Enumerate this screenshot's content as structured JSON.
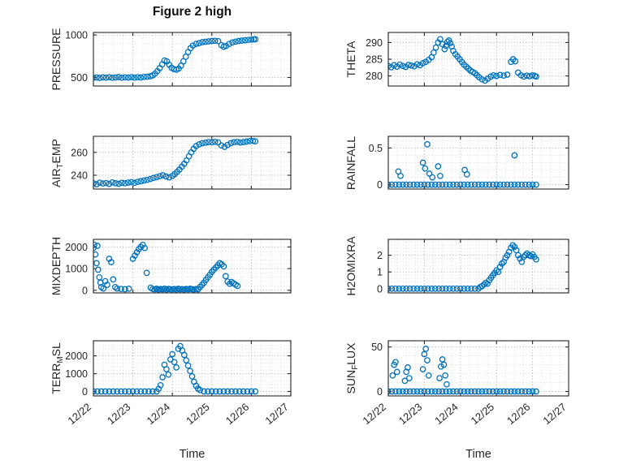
{
  "figure": {
    "title": "Figure 2 high",
    "xlabel": "Time",
    "marker": {
      "color": "#0072BD",
      "size": 3.2
    },
    "axis_color": "#262626",
    "grid_major_color": "#a9a9a9",
    "grid_minor_color": "#dcdcdc",
    "x_axis": {
      "lim": [
        22,
        27
      ],
      "ticks": [
        22,
        23,
        24,
        25,
        26,
        27
      ],
      "tick_labels": [
        "12/22",
        "12/23",
        "12/24",
        "12/25",
        "12/26",
        "12/27"
      ]
    }
  },
  "chart_data": [
    {
      "name": "PRESSURE",
      "type": "scatter",
      "ylabel_parts": [
        {
          "t": "PRESSURE"
        }
      ],
      "yticks": [
        500,
        1000
      ],
      "ytick_labels": [
        "500",
        "1000"
      ],
      "ylim": [
        400,
        1030
      ],
      "x": [
        22.0,
        22.08,
        22.16,
        22.24,
        22.32,
        22.4,
        22.48,
        22.56,
        22.64,
        22.72,
        22.8,
        22.88,
        22.96,
        23.04,
        23.12,
        23.2,
        23.28,
        23.36,
        23.44,
        23.5,
        23.56,
        23.62,
        23.68,
        23.74,
        23.8,
        23.86,
        23.92,
        23.98,
        24.04,
        24.1,
        24.16,
        24.22,
        24.28,
        24.34,
        24.4,
        24.46,
        24.52,
        24.6,
        24.68,
        24.76,
        24.84,
        24.92,
        25.0,
        25.08,
        25.16,
        25.24,
        25.3,
        25.36,
        25.44,
        25.52,
        25.6,
        25.68,
        25.76,
        25.84,
        25.92,
        26.0,
        26.06,
        26.1
      ],
      "y": [
        497,
        500,
        495,
        502,
        498,
        503,
        496,
        500,
        505,
        497,
        502,
        499,
        504,
        498,
        503,
        500,
        507,
        510,
        515,
        525,
        545,
        575,
        610,
        655,
        700,
        690,
        650,
        615,
        598,
        592,
        605,
        640,
        690,
        745,
        800,
        845,
        875,
        895,
        905,
        915,
        920,
        925,
        930,
        932,
        928,
        880,
        862,
        872,
        895,
        912,
        922,
        930,
        935,
        938,
        942,
        946,
        949,
        950
      ]
    },
    {
      "name": "THETA",
      "type": "scatter",
      "ylabel_parts": [
        {
          "t": "THETA"
        }
      ],
      "yticks": [
        280,
        285,
        290
      ],
      "ytick_labels": [
        "280",
        "285",
        "290"
      ],
      "ylim": [
        277,
        293
      ],
      "x": [
        22.0,
        22.08,
        22.16,
        22.24,
        22.32,
        22.4,
        22.48,
        22.56,
        22.64,
        22.72,
        22.8,
        22.88,
        22.96,
        23.04,
        23.12,
        23.2,
        23.26,
        23.32,
        23.38,
        23.44,
        23.5,
        23.56,
        23.6,
        23.64,
        23.68,
        23.72,
        23.76,
        23.8,
        23.86,
        23.92,
        23.98,
        24.04,
        24.1,
        24.16,
        24.22,
        24.28,
        24.34,
        24.4,
        24.46,
        24.52,
        24.6,
        24.68,
        24.76,
        24.84,
        24.92,
        25.0,
        25.1,
        25.2,
        25.3,
        25.4,
        25.46,
        25.52,
        25.6,
        25.68,
        25.76,
        25.84,
        25.92,
        26.0,
        26.06,
        26.1
      ],
      "y": [
        283,
        282.6,
        283.2,
        282.8,
        283.4,
        283,
        282.7,
        283.3,
        283.1,
        282.9,
        283.5,
        283.2,
        283.8,
        284.2,
        284.8,
        285.6,
        287,
        288.5,
        290,
        291,
        289.5,
        288,
        289,
        290.2,
        290.6,
        289.8,
        288.8,
        287.5,
        286.5,
        285.8,
        285,
        284.2,
        283.4,
        282.8,
        282.2,
        281.6,
        281.2,
        280.8,
        280.2,
        279.6,
        279,
        278.6,
        279.2,
        279.8,
        280.2,
        280,
        280.3,
        280.1,
        280.4,
        284.2,
        285,
        284.4,
        281,
        280.2,
        279.8,
        280.1,
        279.9,
        280.2,
        280,
        279.8
      ]
    },
    {
      "name": "AIR_TEMP",
      "type": "scatter",
      "ylabel_parts": [
        {
          "t": "AIR"
        },
        {
          "t": "T",
          "sub": true
        },
        {
          "t": "EMP"
        }
      ],
      "yticks": [
        240,
        260
      ],
      "ytick_labels": [
        "240",
        "260"
      ],
      "ylim": [
        228,
        274
      ],
      "x": [
        22.0,
        22.08,
        22.16,
        22.24,
        22.32,
        22.4,
        22.48,
        22.56,
        22.64,
        22.72,
        22.8,
        22.88,
        22.96,
        23.04,
        23.12,
        23.2,
        23.28,
        23.36,
        23.44,
        23.52,
        23.6,
        23.68,
        23.76,
        23.84,
        23.92,
        24.0,
        24.06,
        24.12,
        24.18,
        24.24,
        24.3,
        24.36,
        24.42,
        24.48,
        24.54,
        24.6,
        24.68,
        24.76,
        24.84,
        24.92,
        25.0,
        25.08,
        25.16,
        25.24,
        25.32,
        25.4,
        25.48,
        25.56,
        25.64,
        25.72,
        25.8,
        25.88,
        25.96,
        26.04,
        26.1
      ],
      "y": [
        233,
        232.2,
        233.5,
        232.8,
        233.2,
        232.5,
        233.8,
        233,
        232.6,
        233.4,
        233,
        233.6,
        234,
        233.4,
        234.2,
        234.8,
        235.4,
        236,
        236.8,
        237.6,
        238.4,
        239.2,
        240,
        239,
        238.2,
        239.5,
        241,
        243,
        245,
        247.5,
        250,
        253,
        256.5,
        260,
        263,
        265.5,
        267,
        268,
        268.5,
        269,
        268.8,
        269.2,
        268.6,
        266,
        264.8,
        266.5,
        268,
        268.8,
        269.2,
        268.6,
        269,
        269.4,
        269.8,
        270,
        269.6
      ]
    },
    {
      "name": "RAINFALL",
      "type": "scatter",
      "ylabel_parts": [
        {
          "t": "RAINFALL"
        }
      ],
      "yticks": [
        0,
        0.5
      ],
      "ytick_labels": [
        "0",
        "0.5"
      ],
      "ylim": [
        -0.06,
        0.66
      ],
      "x": [
        22.0,
        22.1,
        22.2,
        22.3,
        22.4,
        22.5,
        22.6,
        22.7,
        22.8,
        22.9,
        23.0,
        23.1,
        23.2,
        23.3,
        23.4,
        23.5,
        23.6,
        23.7,
        23.8,
        23.9,
        24.0,
        24.1,
        24.2,
        24.3,
        24.4,
        24.5,
        24.6,
        24.7,
        24.8,
        24.9,
        25.0,
        25.1,
        25.2,
        25.3,
        25.4,
        25.5,
        25.6,
        25.7,
        25.8,
        25.9,
        26.0,
        26.1,
        22.28,
        22.34,
        22.96,
        23.02,
        23.08,
        23.14,
        23.22,
        23.38,
        23.44,
        24.12,
        24.18,
        25.5
      ],
      "y": [
        0,
        0,
        0,
        0,
        0,
        0,
        0,
        0,
        0,
        0,
        0,
        0,
        0,
        0,
        0,
        0,
        0,
        0,
        0,
        0,
        0,
        0,
        0,
        0,
        0,
        0,
        0,
        0,
        0,
        0,
        0,
        0,
        0,
        0,
        0,
        0,
        0,
        0,
        0,
        0,
        0,
        0,
        0.18,
        0.12,
        0.3,
        0.22,
        0.55,
        0.15,
        0.1,
        0.25,
        0.12,
        0.2,
        0.14,
        0.4
      ]
    },
    {
      "name": "MIXDEPTH",
      "type": "scatter",
      "ylabel_parts": [
        {
          "t": "MIXDEPTH"
        }
      ],
      "yticks": [
        0,
        1000,
        2000
      ],
      "ytick_labels": [
        "0",
        "1000",
        "2000"
      ],
      "ylim": [
        -120,
        2350
      ],
      "x": [
        22.0,
        22.02,
        22.05,
        22.08,
        22.1,
        22.12,
        22.15,
        22.18,
        22.2,
        22.25,
        22.3,
        22.35,
        22.4,
        22.45,
        22.5,
        22.55,
        22.6,
        22.7,
        22.8,
        22.9,
        23.0,
        23.05,
        23.1,
        23.15,
        23.2,
        23.25,
        23.3,
        23.35,
        23.45,
        23.5,
        23.55,
        23.6,
        23.65,
        23.7,
        23.75,
        23.8,
        23.85,
        23.9,
        23.95,
        24.0,
        24.05,
        24.1,
        24.15,
        24.2,
        24.25,
        24.3,
        24.35,
        24.4,
        24.45,
        24.5,
        24.55,
        24.6,
        24.65,
        24.7,
        24.75,
        24.8,
        24.85,
        24.9,
        24.95,
        25.0,
        25.05,
        25.1,
        25.15,
        25.2,
        25.25,
        25.3,
        25.35,
        25.4,
        25.45,
        25.5,
        25.55,
        25.6,
        25.65
      ],
      "y": [
        1950,
        2100,
        1650,
        1250,
        2050,
        950,
        600,
        350,
        150,
        80,
        420,
        250,
        1450,
        1300,
        500,
        150,
        80,
        60,
        50,
        70,
        1450,
        1600,
        1750,
        1900,
        2000,
        2100,
        1950,
        800,
        120,
        60,
        40,
        70,
        30,
        60,
        45,
        75,
        35,
        65,
        50,
        40,
        60,
        35,
        70,
        45,
        55,
        30,
        65,
        40,
        70,
        50,
        35,
        60,
        45,
        150,
        250,
        350,
        480,
        600,
        720,
        850,
        950,
        1050,
        1150,
        1250,
        1200,
        1100,
        650,
        400,
        300,
        380,
        320,
        260,
        200
      ]
    },
    {
      "name": "H2OMIXRA",
      "type": "scatter",
      "ylabel_parts": [
        {
          "t": "H2OMIXRA"
        }
      ],
      "yticks": [
        0,
        1,
        2
      ],
      "ytick_labels": [
        "0",
        "1",
        "2"
      ],
      "ylim": [
        -0.25,
        2.95
      ],
      "x": [
        22.0,
        22.1,
        22.2,
        22.3,
        22.4,
        22.5,
        22.6,
        22.7,
        22.8,
        22.9,
        23.0,
        23.1,
        23.2,
        23.3,
        23.4,
        23.5,
        23.6,
        23.7,
        23.8,
        23.9,
        24.0,
        24.1,
        24.2,
        24.3,
        24.4,
        24.5,
        24.55,
        24.6,
        24.65,
        24.7,
        24.75,
        24.8,
        24.85,
        24.9,
        24.95,
        25.0,
        25.05,
        25.1,
        25.15,
        25.2,
        25.25,
        25.3,
        25.35,
        25.4,
        25.45,
        25.5,
        25.55,
        25.6,
        25.65,
        25.7,
        25.75,
        25.8,
        25.85,
        25.9,
        25.95,
        26.0,
        26.05,
        26.1
      ],
      "y": [
        0,
        0,
        0,
        0,
        0,
        0,
        0,
        0,
        0,
        0,
        0,
        0,
        0,
        0,
        0,
        0,
        0,
        0,
        0,
        0,
        0,
        0,
        0,
        0,
        0,
        0,
        0.1,
        0.15,
        0.25,
        0.35,
        0.3,
        0.5,
        0.65,
        0.8,
        0.95,
        1.1,
        1.0,
        1.3,
        1.5,
        1.6,
        1.85,
        2.0,
        2.2,
        2.45,
        2.6,
        2.5,
        2.3,
        2.0,
        1.8,
        1.6,
        1.9,
        2.0,
        2.1,
        2.0,
        1.95,
        2.05,
        1.9,
        1.75
      ]
    },
    {
      "name": "TERR_MSL",
      "type": "scatter",
      "ylabel_parts": [
        {
          "t": "TERR"
        },
        {
          "t": "M",
          "sub": true
        },
        {
          "t": "SL"
        }
      ],
      "yticks": [
        0,
        1000,
        2000
      ],
      "ytick_labels": [
        "0",
        "1000",
        "2000"
      ],
      "ylim": [
        -250,
        2850
      ],
      "x": [
        22.0,
        22.1,
        22.2,
        22.3,
        22.4,
        22.5,
        22.6,
        22.7,
        22.8,
        22.9,
        23.0,
        23.1,
        23.2,
        23.3,
        23.4,
        23.5,
        23.6,
        23.65,
        23.7,
        23.75,
        23.8,
        23.85,
        23.9,
        23.95,
        24.0,
        24.05,
        24.1,
        24.15,
        24.2,
        24.25,
        24.3,
        24.35,
        24.4,
        24.45,
        24.5,
        24.55,
        24.6,
        24.65,
        24.7,
        24.8,
        24.9,
        25.0,
        25.1,
        25.2,
        25.3,
        25.4,
        25.5,
        25.6,
        25.7,
        25.8,
        25.9,
        26.0,
        26.1
      ],
      "y": [
        0,
        0,
        0,
        0,
        0,
        0,
        0,
        0,
        0,
        0,
        0,
        0,
        0,
        0,
        0,
        0,
        0,
        150,
        350,
        800,
        1500,
        1250,
        950,
        1800,
        2100,
        1650,
        1350,
        2400,
        2550,
        2300,
        2050,
        1750,
        1450,
        1150,
        850,
        550,
        320,
        160,
        80,
        0,
        0,
        0,
        0,
        0,
        0,
        0,
        0,
        0,
        0,
        0,
        0,
        0,
        0
      ]
    },
    {
      "name": "SUN_FLUX",
      "type": "scatter",
      "ylabel_parts": [
        {
          "t": "SUN"
        },
        {
          "t": "F",
          "sub": true
        },
        {
          "t": "LUX"
        }
      ],
      "yticks": [
        0,
        50
      ],
      "ytick_labels": [
        "0",
        "50"
      ],
      "ylim": [
        -5,
        57
      ],
      "x": [
        22.0,
        22.1,
        22.2,
        22.3,
        22.4,
        22.5,
        22.6,
        22.7,
        22.8,
        22.9,
        23.0,
        23.1,
        23.2,
        23.3,
        23.4,
        23.5,
        23.6,
        23.7,
        23.8,
        23.9,
        24.0,
        24.1,
        24.2,
        24.3,
        24.4,
        24.5,
        24.6,
        24.7,
        24.8,
        24.9,
        25.0,
        25.1,
        25.2,
        25.3,
        25.4,
        25.5,
        25.6,
        25.7,
        25.8,
        25.9,
        26.0,
        26.1,
        22.12,
        22.16,
        22.2,
        22.24,
        22.46,
        22.5,
        22.54,
        22.58,
        22.96,
        23.0,
        23.04,
        23.08,
        23.12,
        23.42,
        23.46,
        23.5,
        23.54,
        23.58,
        23.62
      ],
      "y": [
        0,
        0,
        0,
        0,
        0,
        0,
        0,
        0,
        0,
        0,
        0,
        0,
        0,
        0,
        0,
        0,
        0,
        0,
        0,
        0,
        0,
        0,
        0,
        0,
        0,
        0,
        0,
        0,
        0,
        0,
        0,
        0,
        0,
        0,
        0,
        0,
        0,
        0,
        0,
        0,
        0,
        0,
        18,
        30,
        33,
        22,
        12,
        22,
        27,
        15,
        25,
        42,
        48,
        35,
        18,
        15,
        28,
        36,
        30,
        18,
        8
      ]
    }
  ]
}
